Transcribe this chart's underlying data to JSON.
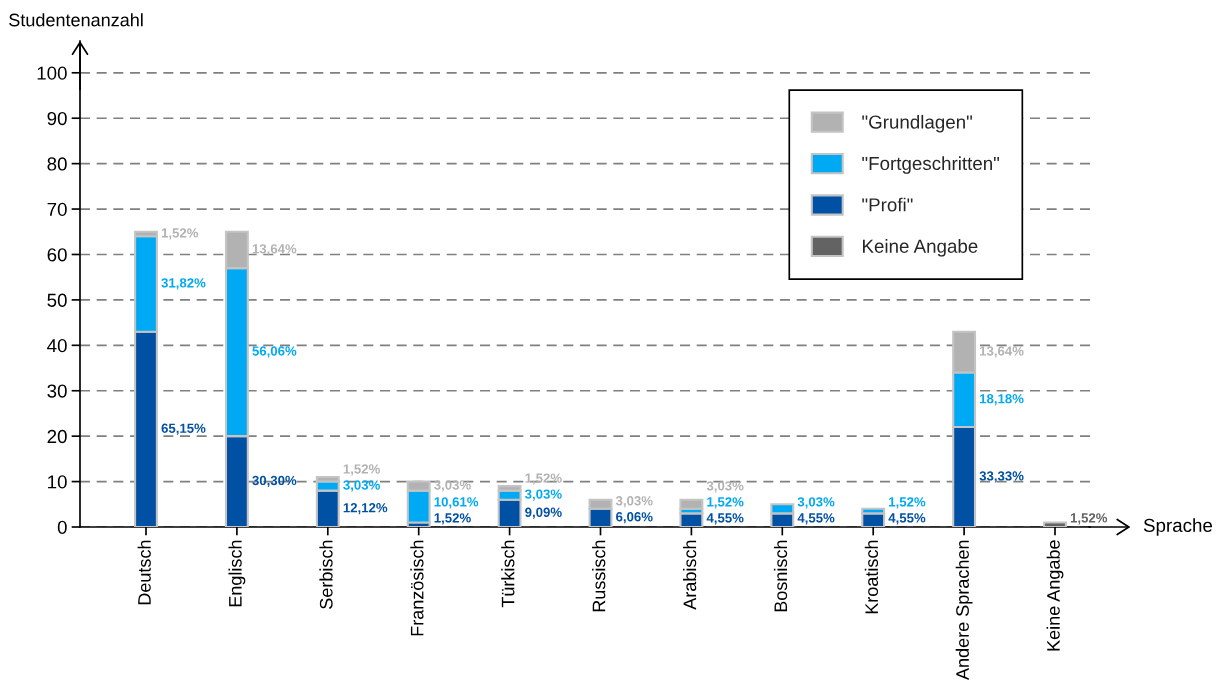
{
  "chart_data": {
    "type": "bar",
    "stacked": true,
    "ylabel": "Studentenanzahl",
    "xlabel": "Sprache",
    "categories": [
      "Deutsch",
      "Englisch",
      "Serbisch",
      "Französisch",
      "Türkisch",
      "Russisch",
      "Arabisch",
      "Bosnisch",
      "Kroatisch",
      "Andere Sprachen",
      "Keine Angabe"
    ],
    "series": [
      {
        "name": "Keine Angabe",
        "color": "#636363",
        "values": [
          null,
          null,
          null,
          null,
          null,
          null,
          null,
          null,
          null,
          null,
          1
        ]
      },
      {
        "name": "\"Profi\"",
        "color": "#0050a4",
        "values": [
          43,
          20,
          8,
          1,
          6,
          4,
          3,
          3,
          3,
          22,
          null
        ]
      },
      {
        "name": "\"Fortgeschritten\"",
        "color": "#00a9f4",
        "values": [
          21,
          37,
          2,
          7,
          2,
          null,
          1,
          2,
          1,
          12,
          null
        ]
      },
      {
        "name": "\"Grundlagen\"",
        "color": "#b2b2b2",
        "values": [
          1,
          8,
          1,
          2,
          1,
          2,
          2,
          null,
          null,
          9,
          null
        ]
      }
    ],
    "annotations": [
      "65,15%",
      "31,82%",
      {
        "text": "1,52%",
        "x": "Deutsch",
        "y": 65
      },
      "30,30%",
      "56,06%",
      {
        "text": "13,64%",
        "x": "Englisch",
        "y": 65
      },
      {
        "text": "12,12%",
        "x": "Serbisch",
        "y": 8
      },
      {
        "text": "3,03%",
        "x": "Serbisch",
        "y": 10
      },
      {
        "text": "1,52%",
        "x": "Serbisch",
        "y": 11
      },
      {
        "text": "1,52%",
        "x": "Französisch",
        "y": 1
      },
      {
        "text": "10,61%",
        "x": "Französisch",
        "y": 8
      },
      {
        "text": "3,03%",
        "x": "Französisch",
        "y": 10
      },
      {
        "text": "9,09%",
        "x": "Türkisch",
        "y": 6
      },
      {
        "text": "3,03%",
        "x": "Türkisch",
        "y": 8
      },
      {
        "text": "1,52%",
        "x": "Türkisch",
        "y": 9
      },
      {
        "text": "6,06%",
        "x": "Russisch",
        "y": 4
      },
      {
        "text": "3,03%",
        "x": "Russisch",
        "y": 6
      },
      {
        "text": "4,55%",
        "x": "Arabisch",
        "y": 3
      },
      {
        "text": "1,52%",
        "x": "Arabisch",
        "y": 4
      },
      {
        "text": "3,03%",
        "x": "Arabisch",
        "y": 6
      },
      {
        "text": "4,55%",
        "x": "Bosnisch",
        "y": 3
      },
      {
        "text": "3,03%",
        "x": "Bosnisch",
        "y": 5
      },
      {
        "text": "4,55%",
        "x": "Kroatisch",
        "y": 3
      },
      {
        "text": "1,52%",
        "x": "Kroatisch",
        "y": 4
      },
      "33,33%",
      {
        "text": "18,18%",
        "x": "Andere Sprachen",
        "y": 34
      },
      {
        "text": "13,64%",
        "x": "Andere Sprachen",
        "y": 43
      },
      {
        "text": "1,52%",
        "x": "Keine Angabe",
        "y": 1
      }
    ],
    "ylim": [
      0,
      107
    ],
    "yticks": [
      0,
      10,
      20,
      30,
      40,
      50,
      60,
      70,
      80,
      90,
      100
    ],
    "grid": "y",
    "legend": "top right"
  }
}
